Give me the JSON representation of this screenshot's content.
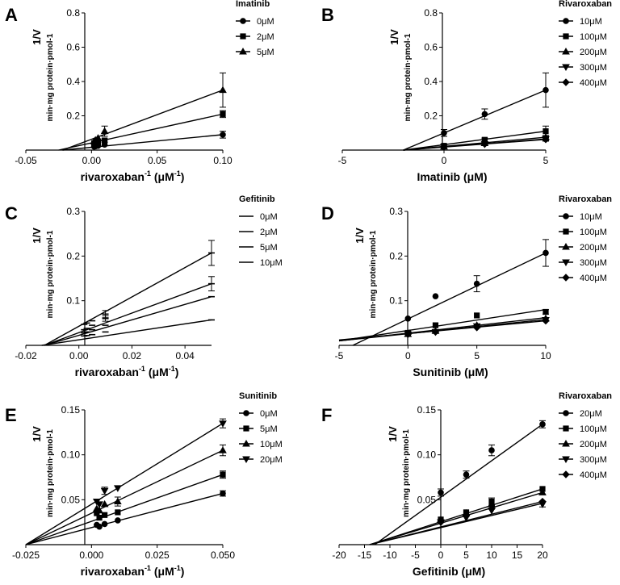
{
  "figure": {
    "name": "Lineweaver-Burk double-reciprocal plots"
  },
  "chart_data": [
    {
      "panel": "A",
      "type": "line",
      "ylabel_main": "1/V",
      "ylabel_sub": "min·mg protein·pmol-1",
      "xlabel_main": "rivaroxaban",
      "xlabel_sup": "-1",
      "xlabel_unit": " (μM",
      "xlabel_unit_sup": "-1",
      "xlabel_close": ")",
      "xlim": [
        -0.05,
        0.1
      ],
      "ylim": [
        0,
        0.8
      ],
      "xticks": [
        "-0.05",
        "0.00",
        "0.05",
        "0.10"
      ],
      "xtick_values": [
        -0.05,
        0,
        0.05,
        0.1
      ],
      "yticks": [
        "0.2",
        "0.4",
        "0.6",
        "0.8"
      ],
      "ytick_values": [
        0.2,
        0.4,
        0.6,
        0.8
      ],
      "legend_title": "Imatinib",
      "series": [
        {
          "name": "0μM",
          "marker": "circle",
          "x": [
            0.002,
            0.003,
            0.005,
            0.01,
            0.1
          ],
          "y": [
            0.02,
            0.022,
            0.025,
            0.032,
            0.09
          ],
          "err": [
            0,
            0,
            0,
            0,
            0.02
          ],
          "line": [
            [
              -0.022,
              0
            ],
            [
              0.1,
              0.09
            ]
          ]
        },
        {
          "name": "2μM",
          "marker": "square",
          "x": [
            0.002,
            0.003,
            0.005,
            0.01,
            0.1
          ],
          "y": [
            0.04,
            0.044,
            0.048,
            0.056,
            0.21
          ],
          "err": [
            0,
            0,
            0,
            0.01,
            0.02
          ],
          "line": [
            [
              -0.025,
              0
            ],
            [
              0.1,
              0.21
            ]
          ]
        },
        {
          "name": "5μM",
          "marker": "triangle",
          "x": [
            0.002,
            0.003,
            0.005,
            0.01,
            0.1
          ],
          "y": [
            0.05,
            0.058,
            0.07,
            0.11,
            0.35
          ],
          "err": [
            0,
            0,
            0,
            0.03,
            0.1
          ],
          "line": [
            [
              -0.022,
              0
            ],
            [
              0.1,
              0.35
            ]
          ]
        }
      ]
    },
    {
      "panel": "B",
      "type": "line",
      "ylabel_main": "1/V",
      "ylabel_sub": "min·mg protein·pmol-1",
      "xlabel_main": "Imatinib (μM)",
      "xlim": [
        -5,
        5
      ],
      "ylim": [
        0,
        0.8
      ],
      "xticks": [
        "-5",
        "0",
        "5"
      ],
      "xtick_values": [
        -5,
        0,
        5
      ],
      "yticks": [
        "0.2",
        "0.4",
        "0.6",
        "0.8"
      ],
      "ytick_values": [
        0.2,
        0.4,
        0.6,
        0.8
      ],
      "legend_title": "Rivaroxaban",
      "series": [
        {
          "name": "10μM",
          "marker": "circle",
          "x": [
            0,
            2,
            5
          ],
          "y": [
            0.1,
            0.21,
            0.35
          ],
          "err": [
            0.02,
            0.03,
            0.1
          ],
          "line": [
            [
              -2,
              0
            ],
            [
              5,
              0.35
            ]
          ]
        },
        {
          "name": "100μM",
          "marker": "square",
          "x": [
            0,
            2,
            5
          ],
          "y": [
            0.025,
            0.06,
            0.11
          ],
          "err": [
            0,
            0.01,
            0.03
          ],
          "line": [
            [
              -2,
              0
            ],
            [
              5,
              0.11
            ]
          ]
        },
        {
          "name": "200μM",
          "marker": "triangle",
          "x": [
            0,
            2,
            5
          ],
          "y": [
            0.02,
            0.04,
            0.075
          ],
          "err": [
            0,
            0,
            0.01
          ],
          "line": [
            [
              -2,
              0
            ],
            [
              5,
              0.075
            ]
          ]
        },
        {
          "name": "300μM",
          "marker": "tridown",
          "x": [
            0,
            2,
            5
          ],
          "y": [
            0.02,
            0.035,
            0.065
          ],
          "err": [
            0,
            0,
            0.01
          ],
          "line": [
            [
              -2,
              0
            ],
            [
              5,
              0.065
            ]
          ]
        },
        {
          "name": "400μM",
          "marker": "diamond",
          "x": [
            0,
            2,
            5
          ],
          "y": [
            0.02,
            0.035,
            0.062
          ],
          "err": [
            0,
            0,
            0.01
          ],
          "line": [
            [
              -2,
              0
            ],
            [
              5,
              0.062
            ]
          ]
        }
      ]
    },
    {
      "panel": "C",
      "type": "line",
      "ylabel_main": "1/V",
      "ylabel_sub": "min·mg protein·pmol-1",
      "xlabel_main": "rivaroxaban",
      "xlabel_sup": "-1",
      "xlabel_unit": " (μM",
      "xlabel_unit_sup": "-1",
      "xlabel_close": ")",
      "xlim": [
        -0.02,
        0.05
      ],
      "ylim": [
        0,
        0.3
      ],
      "xticks": [
        "-0.02",
        "0.00",
        "0.02",
        "0.04"
      ],
      "xtick_values": [
        -0.02,
        0,
        0.02,
        0.04
      ],
      "yticks": [
        "0.1",
        "0.2",
        "0.3"
      ],
      "ytick_values": [
        0.1,
        0.2,
        0.3
      ],
      "legend_title": "Gefitinib",
      "series": [
        {
          "name": "0μM",
          "marker": "dash",
          "x": [
            0.002,
            0.003,
            0.005,
            0.01,
            0.05
          ],
          "y": [
            0.021,
            0.022,
            0.024,
            0.03,
            0.057
          ],
          "err": [
            0,
            0,
            0,
            0,
            0
          ],
          "line": [
            [
              -0.014,
              0
            ],
            [
              0.05,
              0.057
            ]
          ]
        },
        {
          "name": "2μM",
          "marker": "dash",
          "x": [
            0.002,
            0.003,
            0.005,
            0.01,
            0.05
          ],
          "y": [
            0.028,
            0.03,
            0.035,
            0.045,
            0.109
          ],
          "err": [
            0,
            0,
            0,
            0,
            0
          ],
          "line": [
            [
              -0.013,
              0
            ],
            [
              0.05,
              0.109
            ]
          ]
        },
        {
          "name": "5μM",
          "marker": "dash",
          "x": [
            0.002,
            0.003,
            0.005,
            0.01,
            0.05
          ],
          "y": [
            0.035,
            0.038,
            0.045,
            0.06,
            0.138
          ],
          "err": [
            0,
            0,
            0,
            0.006,
            0.016
          ],
          "line": [
            [
              -0.013,
              0
            ],
            [
              0.05,
              0.138
            ]
          ]
        },
        {
          "name": "10μM",
          "marker": "dash",
          "x": [
            0.002,
            0.003,
            0.005,
            0.01,
            0.05
          ],
          "y": [
            0.047,
            0.05,
            0.055,
            0.07,
            0.207
          ],
          "err": [
            0,
            0,
            0,
            0.008,
            0.028
          ],
          "line": [
            [
              -0.013,
              0
            ],
            [
              0.05,
              0.207
            ]
          ]
        }
      ]
    },
    {
      "panel": "D",
      "type": "line",
      "ylabel_main": "1/V",
      "ylabel_sub": "min·mg protein·pmol-1",
      "xlabel_main": "Sunitinib (μM)",
      "xlim": [
        -5,
        10
      ],
      "ylim": [
        0,
        0.3
      ],
      "xticks": [
        "-5",
        "0",
        "5",
        "10"
      ],
      "xtick_values": [
        -5,
        0,
        5,
        10
      ],
      "yticks": [
        "0.1",
        "0.2",
        "0.3"
      ],
      "ytick_values": [
        0.1,
        0.2,
        0.3
      ],
      "legend_title": "Rivaroxaban",
      "series": [
        {
          "name": "10μM",
          "marker": "circle",
          "x": [
            0,
            2,
            5,
            10
          ],
          "y": [
            0.06,
            0.11,
            0.138,
            0.207
          ],
          "err": [
            0,
            0,
            0.018,
            0.03
          ],
          "line": [
            [
              -4,
              0
            ],
            [
              10,
              0.207
            ]
          ]
        },
        {
          "name": "100μM",
          "marker": "square",
          "x": [
            0,
            2,
            5,
            10
          ],
          "y": [
            0.028,
            0.045,
            0.067,
            0.075
          ],
          "err": [
            0,
            0,
            0,
            0.005
          ],
          "line": [
            [
              -5,
              0.01
            ],
            [
              10,
              0.08
            ]
          ]
        },
        {
          "name": "200μM",
          "marker": "triangle",
          "x": [
            0,
            2,
            5,
            10
          ],
          "y": [
            0.025,
            0.032,
            0.045,
            0.06
          ],
          "err": [
            0,
            0,
            0,
            0
          ],
          "line": [
            [
              -5,
              0.01
            ],
            [
              10,
              0.062
            ]
          ]
        },
        {
          "name": "300μM",
          "marker": "tridown",
          "x": [
            0,
            2,
            5,
            10
          ],
          "y": [
            0.025,
            0.03,
            0.043,
            0.057
          ],
          "err": [
            0,
            0,
            0,
            0
          ],
          "line": [
            [
              -5,
              0.01
            ],
            [
              10,
              0.058
            ]
          ]
        },
        {
          "name": "400μM",
          "marker": "diamond",
          "x": [
            0,
            2,
            5,
            10
          ],
          "y": [
            0.025,
            0.03,
            0.04,
            0.055
          ],
          "err": [
            0,
            0,
            0,
            0
          ],
          "line": [
            [
              -5,
              0.012
            ],
            [
              10,
              0.055
            ]
          ]
        }
      ]
    },
    {
      "panel": "E",
      "type": "line",
      "ylabel_main": "1/V",
      "ylabel_sub": "min·mg protein·pmol-1",
      "xlabel_main": "rivaroxaban",
      "xlabel_sup": "-1",
      "xlabel_unit": " (μM",
      "xlabel_unit_sup": "-1",
      "xlabel_close": ")",
      "xlim": [
        -0.025,
        0.05
      ],
      "ylim": [
        0,
        0.15
      ],
      "xticks": [
        "-0.025",
        "0.000",
        "0.025",
        "0.050"
      ],
      "xtick_values": [
        -0.025,
        0,
        0.025,
        0.05
      ],
      "yticks": [
        "0.05",
        "0.10",
        "0.15"
      ],
      "ytick_values": [
        0.05,
        0.1,
        0.15
      ],
      "legend_title": "Sunitinib",
      "series": [
        {
          "name": "0μM",
          "marker": "circle",
          "x": [
            0.002,
            0.003,
            0.005,
            0.01,
            0.05
          ],
          "y": [
            0.022,
            0.02,
            0.023,
            0.027,
            0.057
          ],
          "err": [
            0,
            0,
            0,
            0,
            0.003
          ],
          "line": [
            [
              -0.025,
              0
            ],
            [
              0.05,
              0.057
            ]
          ]
        },
        {
          "name": "5μM",
          "marker": "square",
          "x": [
            0.002,
            0.003,
            0.005,
            0.01,
            0.05
          ],
          "y": [
            0.035,
            0.03,
            0.033,
            0.036,
            0.078
          ],
          "err": [
            0,
            0,
            0,
            0,
            0.004
          ],
          "line": [
            [
              -0.025,
              0
            ],
            [
              0.05,
              0.078
            ]
          ]
        },
        {
          "name": "10μM",
          "marker": "triangle",
          "x": [
            0.002,
            0.003,
            0.005,
            0.01,
            0.05
          ],
          "y": [
            0.04,
            0.038,
            0.045,
            0.048,
            0.105
          ],
          "err": [
            0,
            0,
            0,
            0.005,
            0.006
          ],
          "line": [
            [
              -0.025,
              0
            ],
            [
              0.05,
              0.105
            ]
          ]
        },
        {
          "name": "20μM",
          "marker": "tridown",
          "x": [
            0.002,
            0.003,
            0.005,
            0.01,
            0.05
          ],
          "y": [
            0.048,
            0.045,
            0.06,
            0.063,
            0.135
          ],
          "err": [
            0,
            0,
            0.004,
            0,
            0.005
          ],
          "line": [
            [
              -0.025,
              0
            ],
            [
              0.05,
              0.135
            ]
          ]
        }
      ]
    },
    {
      "panel": "F",
      "type": "line",
      "ylabel_main": "1/V",
      "ylabel_sub": "min·mg protein·pmol-1",
      "xlabel_main": "Gefitinib (μM)",
      "xlim": [
        -20,
        20
      ],
      "ylim": [
        0,
        0.15
      ],
      "xticks": [
        "-20",
        "-15",
        "-10",
        "-5",
        "0",
        "5",
        "10",
        "15",
        "20"
      ],
      "xtick_values": [
        -20,
        -15,
        -10,
        -5,
        0,
        5,
        10,
        15,
        20
      ],
      "yticks": [
        "0.05",
        "0.10",
        "0.15"
      ],
      "ytick_values": [
        0.05,
        0.1,
        0.15
      ],
      "legend_title": "Rivaroxaban",
      "series": [
        {
          "name": "20μM",
          "marker": "circle",
          "x": [
            0,
            5,
            10,
            20
          ],
          "y": [
            0.058,
            0.078,
            0.105,
            0.134
          ],
          "err": [
            0.004,
            0.004,
            0.006,
            0.004
          ],
          "line": [
            [
              -13,
              0
            ],
            [
              20,
              0.134
            ]
          ]
        },
        {
          "name": "100μM",
          "marker": "square",
          "x": [
            0,
            5,
            10,
            20
          ],
          "y": [
            0.028,
            0.036,
            0.048,
            0.062
          ],
          "err": [
            0,
            0,
            0.004,
            0
          ],
          "line": [
            [
              -14,
              0
            ],
            [
              20,
              0.062
            ]
          ]
        },
        {
          "name": "200μM",
          "marker": "triangle",
          "x": [
            0,
            5,
            10,
            20
          ],
          "y": [
            0.028,
            0.035,
            0.045,
            0.058
          ],
          "err": [
            0,
            0,
            0,
            0
          ],
          "line": [
            [
              -14,
              0
            ],
            [
              20,
              0.058
            ]
          ]
        },
        {
          "name": "300μM",
          "marker": "tridown",
          "x": [
            0,
            5,
            10,
            20
          ],
          "y": [
            0.025,
            0.03,
            0.038,
            0.045
          ],
          "err": [
            0,
            0,
            0,
            0.003
          ],
          "line": [
            [
              -14,
              0
            ],
            [
              20,
              0.046
            ]
          ]
        },
        {
          "name": "400μM",
          "marker": "diamond",
          "x": [
            0,
            5,
            10,
            20
          ],
          "y": [
            0.025,
            0.032,
            0.04,
            0.048
          ],
          "err": [
            0,
            0,
            0,
            0
          ],
          "line": [
            [
              -14,
              0
            ],
            [
              20,
              0.048
            ]
          ]
        }
      ]
    }
  ]
}
